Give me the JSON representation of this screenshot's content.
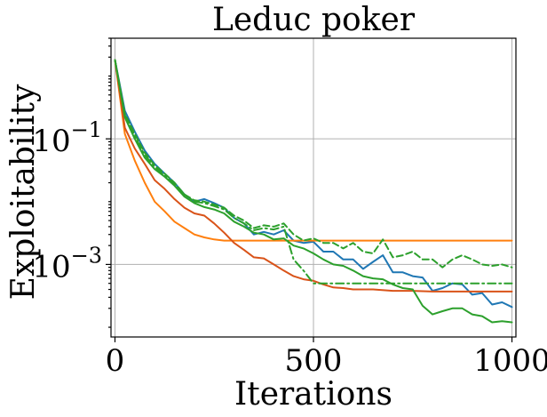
{
  "chart_data": {
    "type": "line",
    "title": "Leduc poker",
    "xlabel": "Iterations",
    "ylabel": "Exploitability",
    "xlim": [
      -10,
      1010
    ],
    "ylim": [
      7e-05,
      4.0
    ],
    "yscale": "log",
    "xticks": [
      {
        "value": 0,
        "label": "0"
      },
      {
        "value": 500,
        "label": "500"
      },
      {
        "value": 1000,
        "label": "1000"
      }
    ],
    "yticks": [
      {
        "value": 0.1,
        "base": "10",
        "exp": "−1"
      },
      {
        "value": 0.001,
        "base": "10",
        "exp": "−3"
      }
    ],
    "grid": true,
    "series": [
      {
        "color": "#1f77b4",
        "dash": "solid",
        "x": [
          0,
          25,
          50,
          75,
          100,
          125,
          150,
          175,
          200,
          225,
          250,
          275,
          300,
          325,
          350,
          375,
          400,
          425,
          450,
          475,
          500,
          525,
          550,
          575,
          600,
          625,
          650,
          675,
          700,
          725,
          750,
          775,
          800,
          825,
          850,
          875,
          900,
          925,
          950,
          975,
          1000
        ],
        "y": [
          1.8,
          0.28,
          0.13,
          0.065,
          0.04,
          0.028,
          0.02,
          0.013,
          0.01,
          0.011,
          0.0095,
          0.008,
          0.0055,
          0.0045,
          0.003,
          0.0033,
          0.003,
          0.0035,
          0.0024,
          0.0022,
          0.0023,
          0.0016,
          0.0016,
          0.0012,
          0.0012,
          0.00085,
          0.0011,
          0.0014,
          0.00075,
          0.00075,
          0.00065,
          0.00062,
          0.00038,
          0.00042,
          0.0005,
          0.00048,
          0.00033,
          0.00035,
          0.00023,
          0.00025,
          0.00021
        ]
      },
      {
        "color": "#ff7f0e",
        "dash": "solid",
        "x": [
          0,
          25,
          50,
          75,
          100,
          125,
          150,
          175,
          200,
          225,
          250,
          275,
          300,
          350,
          400,
          450,
          500,
          600,
          700,
          800,
          900,
          1000
        ],
        "y": [
          1.8,
          0.12,
          0.045,
          0.02,
          0.01,
          0.007,
          0.0048,
          0.0038,
          0.003,
          0.0027,
          0.0025,
          0.0024,
          0.0024,
          0.0024,
          0.0024,
          0.0024,
          0.0024,
          0.0024,
          0.0024,
          0.0024,
          0.0024,
          0.0024
        ]
      },
      {
        "color": "#d95319",
        "dash": "solid",
        "x": [
          0,
          25,
          50,
          75,
          100,
          125,
          150,
          175,
          200,
          225,
          250,
          275,
          300,
          325,
          350,
          375,
          400,
          425,
          450,
          475,
          500,
          525,
          550,
          575,
          600,
          650,
          700,
          750,
          800,
          850,
          900,
          950,
          1000
        ],
        "y": [
          1.8,
          0.15,
          0.07,
          0.04,
          0.022,
          0.016,
          0.011,
          0.008,
          0.0065,
          0.006,
          0.0045,
          0.0032,
          0.0022,
          0.0017,
          0.0013,
          0.00125,
          0.001,
          0.0008,
          0.00065,
          0.00058,
          0.00055,
          0.00048,
          0.00043,
          0.00042,
          0.0004,
          0.0004,
          0.00038,
          0.00038,
          0.00037,
          0.00037,
          0.00037,
          0.00037,
          0.00037
        ]
      },
      {
        "color": "#2ca02c",
        "dash": "solid",
        "x": [
          0,
          25,
          50,
          75,
          100,
          125,
          150,
          175,
          200,
          225,
          250,
          275,
          300,
          325,
          350,
          375,
          400,
          425,
          450,
          475,
          500,
          525,
          550,
          575,
          600,
          625,
          650,
          675,
          700,
          725,
          750,
          775,
          800,
          825,
          850,
          875,
          900,
          925,
          950,
          975,
          1000
        ],
        "y": [
          1.8,
          0.22,
          0.1,
          0.05,
          0.033,
          0.025,
          0.018,
          0.012,
          0.0095,
          0.0082,
          0.0075,
          0.0065,
          0.0048,
          0.004,
          0.0032,
          0.003,
          0.0025,
          0.0026,
          0.002,
          0.0018,
          0.0015,
          0.0012,
          0.001,
          0.00095,
          0.0008,
          0.00065,
          0.0006,
          0.00058,
          0.00048,
          0.00042,
          0.0004,
          0.00022,
          0.00016,
          0.00018,
          0.0002,
          0.0002,
          0.00016,
          0.00015,
          0.00012,
          0.000125,
          0.00012
        ]
      },
      {
        "color": "#2ca02c",
        "dash": "dashed",
        "x": [
          0,
          25,
          50,
          75,
          100,
          125,
          150,
          175,
          200,
          225,
          250,
          275,
          300,
          325,
          350,
          375,
          400,
          425,
          450,
          475,
          500,
          525,
          550,
          575,
          600,
          625,
          650,
          675,
          700,
          725,
          750,
          775,
          800,
          825,
          850,
          875,
          900,
          925,
          950,
          975,
          1000
        ],
        "y": [
          1.8,
          0.25,
          0.12,
          0.06,
          0.038,
          0.028,
          0.02,
          0.013,
          0.0105,
          0.01,
          0.009,
          0.008,
          0.006,
          0.005,
          0.0038,
          0.0042,
          0.004,
          0.0045,
          0.003,
          0.0024,
          0.0026,
          0.0022,
          0.0022,
          0.0018,
          0.0022,
          0.0016,
          0.0015,
          0.0025,
          0.0013,
          0.0014,
          0.0016,
          0.0012,
          0.0012,
          0.0009,
          0.0012,
          0.0014,
          0.0012,
          0.001,
          0.00095,
          0.001,
          0.0009
        ]
      },
      {
        "color": "#2ca02c",
        "dash": "dashdot",
        "x": [
          0,
          25,
          50,
          75,
          100,
          125,
          150,
          175,
          200,
          225,
          250,
          275,
          300,
          325,
          350,
          375,
          400,
          425,
          450,
          475,
          500,
          525,
          550,
          600,
          700,
          800,
          900,
          1000
        ],
        "y": [
          1.8,
          0.24,
          0.11,
          0.055,
          0.036,
          0.026,
          0.019,
          0.013,
          0.01,
          0.0095,
          0.0085,
          0.0075,
          0.0055,
          0.0045,
          0.0035,
          0.0038,
          0.0036,
          0.004,
          0.0012,
          0.0008,
          0.0005,
          0.0005,
          0.0005,
          0.0005,
          0.0005,
          0.0005,
          0.0005,
          0.0005
        ]
      }
    ]
  }
}
